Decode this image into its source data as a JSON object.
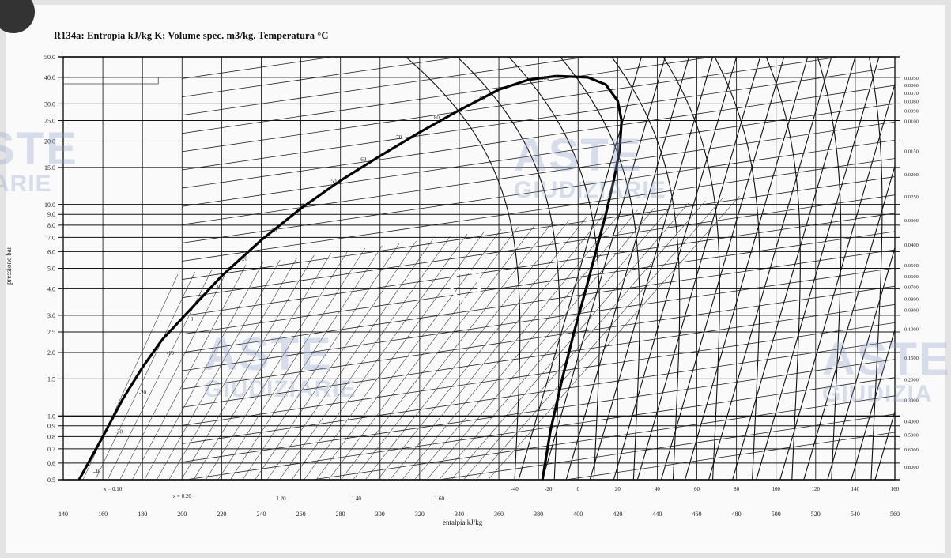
{
  "chart_data": {
    "type": "line",
    "title": "R134a: Entropia kJ/kg K; Volume spec. m3/kg. Temperatura °C",
    "xlabel": "entalpia kJ/kg",
    "ylabel": "pressione bar",
    "x_scale": "linear",
    "y_scale": "log",
    "xlim": [
      140,
      560
    ],
    "ylim": [
      0.5,
      50
    ],
    "x_ticks": [
      "140",
      "160",
      "180",
      "200",
      "220",
      "240",
      "260",
      "280",
      "300",
      "320",
      "340",
      "360",
      "380",
      "400",
      "420",
      "440",
      "460",
      "480",
      "500",
      "520",
      "540",
      "560"
    ],
    "x_ticks_inner": [
      "-40",
      "-20",
      "0",
      "20",
      "40",
      "60",
      "80",
      "100",
      "120",
      "140",
      "160"
    ],
    "x_ticks_inner_values": [
      368,
      385,
      400,
      420,
      440,
      460,
      480,
      500,
      520,
      540,
      560
    ],
    "y_ticks": [
      "0.5",
      "0.6",
      "0.7",
      "0.8",
      "0.9",
      "1.0",
      "1.5",
      "2.0",
      "2.5",
      "3.0",
      "4.0",
      "5.0",
      "6.0",
      "7.0",
      "8.0",
      "9.0",
      "10.0",
      "15.0",
      "20.0",
      "25.0",
      "30.0",
      "40.0",
      "50.0"
    ],
    "y_tick_values": [
      0.5,
      0.6,
      0.7,
      0.8,
      0.9,
      1.0,
      1.5,
      2.0,
      2.5,
      3.0,
      4.0,
      5.0,
      6.0,
      7.0,
      8.0,
      9.0,
      10.0,
      15.0,
      20.0,
      25.0,
      30.0,
      40.0,
      50.0
    ],
    "right_labels": [
      "0.0050",
      "0.0060",
      "0.0070",
      "0.0080",
      "0.0090",
      "0.0100",
      "0.0150",
      "0.0200",
      "0.0250",
      "0.0300",
      "0.0400",
      "0.0500",
      "0.0600",
      "0.0700",
      "0.0800",
      "0.0900",
      "0.1000",
      "0.1500",
      "0.2000",
      "0.3000",
      "0.4000",
      "0.5000",
      "0.6000",
      "0.8000"
    ],
    "right_label_values": [
      40,
      37,
      34,
      31,
      28,
      25,
      18,
      14,
      11,
      8.5,
      6.5,
      5.2,
      4.6,
      4.1,
      3.6,
      3.2,
      2.6,
      1.9,
      1.5,
      1.2,
      0.95,
      0.82,
      0.7,
      0.58
    ],
    "quality_labels": [
      "x = 0.10",
      "x = 0.20"
    ],
    "quality_label_values": [
      {
        "x": 0.1,
        "h": 165
      },
      {
        "x": 0.2,
        "h": 200
      }
    ],
    "entropy_bottom_labels": [
      "1.20",
      "1.40",
      "1.60"
    ],
    "entropy_bottom_values": [
      1.2,
      1.4,
      1.6
    ],
    "saturation": {
      "critical_point": {
        "h": 389,
        "p": 40.6
      },
      "liquid": [
        {
          "h": 148,
          "p": 0.5
        },
        {
          "h": 160,
          "p": 0.8
        },
        {
          "h": 170,
          "p": 1.2
        },
        {
          "h": 180,
          "p": 1.7
        },
        {
          "h": 190,
          "p": 2.3
        },
        {
          "h": 200,
          "p": 2.9
        },
        {
          "h": 220,
          "p": 4.6
        },
        {
          "h": 240,
          "p": 6.8
        },
        {
          "h": 260,
          "p": 9.6
        },
        {
          "h": 280,
          "p": 13.0
        },
        {
          "h": 300,
          "p": 17.0
        },
        {
          "h": 320,
          "p": 22.0
        },
        {
          "h": 340,
          "p": 28.0
        },
        {
          "h": 360,
          "p": 35.0
        },
        {
          "h": 375,
          "p": 39.0
        },
        {
          "h": 389,
          "p": 40.6
        }
      ],
      "vapor": [
        {
          "h": 389,
          "p": 40.6
        },
        {
          "h": 405,
          "p": 40.0
        },
        {
          "h": 414,
          "p": 37.0
        },
        {
          "h": 420,
          "p": 31.0
        },
        {
          "h": 422,
          "p": 25.0
        },
        {
          "h": 421,
          "p": 18.0
        },
        {
          "h": 418,
          "p": 13.0
        },
        {
          "h": 414,
          "p": 9.0
        },
        {
          "h": 409,
          "p": 6.0
        },
        {
          "h": 404,
          "p": 4.0
        },
        {
          "h": 398,
          "p": 2.5
        },
        {
          "h": 392,
          "p": 1.5
        },
        {
          "h": 386,
          "p": 0.85
        },
        {
          "h": 382,
          "p": 0.5
        }
      ]
    },
    "isotherm_labels": [
      {
        "t": "-40",
        "h": 152,
        "p": 0.55
      },
      {
        "t": "-30",
        "h": 163,
        "p": 0.85
      },
      {
        "t": "-20",
        "h": 175,
        "p": 1.3
      },
      {
        "t": "-10",
        "h": 189,
        "p": 2.0
      },
      {
        "t": "0",
        "h": 201,
        "p": 2.9
      },
      {
        "t": "10",
        "h": 214,
        "p": 4.1
      },
      {
        "t": "20",
        "h": 227,
        "p": 5.6
      },
      {
        "t": "30",
        "h": 242,
        "p": 7.6
      },
      {
        "t": "40",
        "h": 256,
        "p": 10.0
      },
      {
        "t": "50",
        "h": 272,
        "p": 13.0
      },
      {
        "t": "60",
        "h": 287,
        "p": 16.5
      },
      {
        "t": "70",
        "h": 305,
        "p": 21.0
      },
      {
        "t": "80",
        "h": 324,
        "p": 26.0
      },
      {
        "t": "90",
        "h": 347,
        "p": 32.0
      },
      {
        "t": "100",
        "h": 378,
        "p": 40.0
      }
    ],
    "grid": true,
    "legend": "none"
  }
}
